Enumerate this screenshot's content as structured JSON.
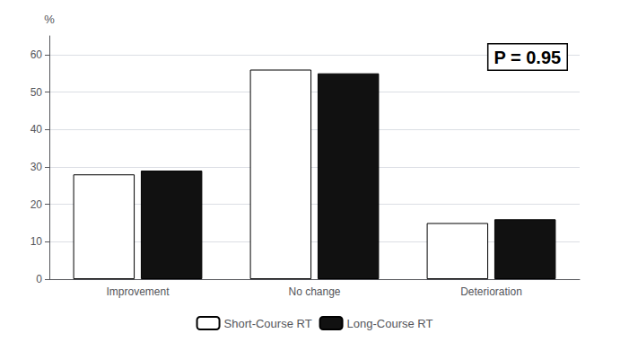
{
  "chart_data": {
    "type": "bar",
    "categories": [
      "Improvement",
      "No change",
      "Deterioration"
    ],
    "series": [
      {
        "name": "Short-Course RT",
        "color": "#ffffff",
        "values": [
          28,
          56,
          15
        ]
      },
      {
        "name": "Long-Course RT",
        "color": "#111111",
        "values": [
          29,
          55,
          16
        ]
      }
    ],
    "ylabel": "%",
    "ylim": [
      0,
      65
    ],
    "yticks": [
      0,
      10,
      20,
      30,
      40,
      50,
      60
    ],
    "annotations": [
      "P = 0.95"
    ],
    "grid": true,
    "legend": "bottom"
  }
}
